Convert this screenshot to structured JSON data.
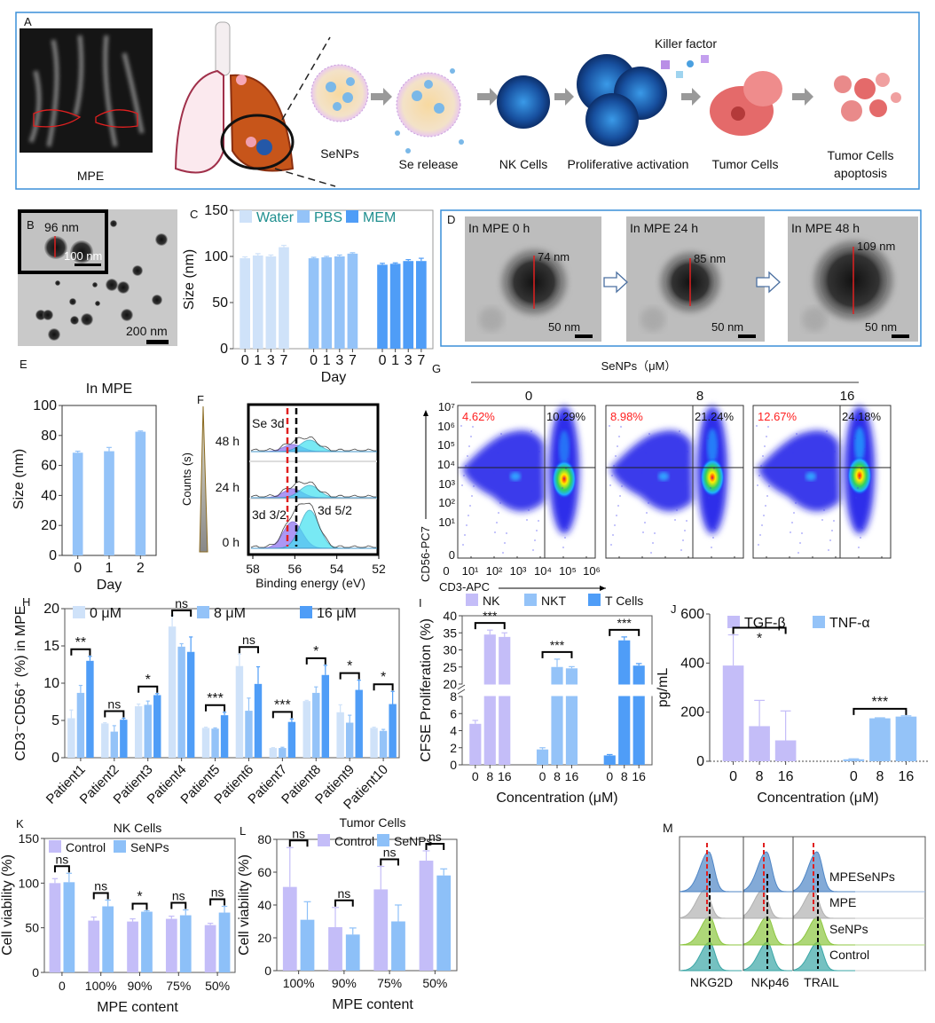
{
  "figure": {
    "panelA": {
      "label": "A",
      "mpe": "MPE",
      "senps": "SeNPs",
      "se_release": "Se release",
      "nk_cells": "NK Cells",
      "proliferative": "Proliferative activation",
      "killer_factor": "Killer factor",
      "tumor_cells": "Tumor Cells",
      "apoptosis_line1": "Tumor Cells",
      "apoptosis_line2": "apoptosis"
    },
    "panelB": {
      "label": "B",
      "inset_size": "96 nm",
      "inset_scale": "100 nm",
      "scale": "200 nm"
    },
    "panelD": {
      "label": "D",
      "frames": [
        {
          "title": "In MPE 0 h",
          "size": "74 nm",
          "scale": "50 nm"
        },
        {
          "title": "In MPE 24 h",
          "size": "85 nm",
          "scale": "50 nm"
        },
        {
          "title": "In MPE 48 h",
          "size": "109 nm",
          "scale": "50 nm"
        }
      ]
    },
    "panelF": {
      "label": "F",
      "ylabel": "Counts (s)",
      "xlabel": "Binding energy (eV)",
      "xticks": [
        "58",
        "56",
        "54",
        "52"
      ],
      "times": [
        "48 h",
        "24 h",
        "0 h"
      ],
      "se3d": "Se 3d",
      "peak_32": "3d 3/2",
      "peak_52": "3d 5/2"
    },
    "panelG": {
      "label": "G",
      "header": "SeNPs（μM）",
      "ylabel": "CD56-PC7",
      "xlabel": "CD3-APC",
      "yticks": [
        "10⁷",
        "10⁶",
        "10⁵",
        "10⁴",
        "10³",
        "10²",
        "10¹",
        "0"
      ],
      "xticks": [
        "0",
        "10¹",
        "10²",
        "10³",
        "10⁴",
        "10⁵",
        "10⁶"
      ],
      "plots": [
        {
          "conc": "0",
          "nk_pct": "4.62%",
          "nkt_pct": "10.29%"
        },
        {
          "conc": "8",
          "nk_pct": "8.98%",
          "nkt_pct": "21.24%"
        },
        {
          "conc": "16",
          "nk_pct": "12.67%",
          "nkt_pct": "24.18%"
        }
      ],
      "nk_color": "#ff2020"
    },
    "panelM": {
      "label": "M",
      "rows": [
        "MPESeNPs",
        "MPE",
        "SeNPs",
        "Control"
      ],
      "markers": [
        "NKG2D",
        "NKp46",
        "TRAIL"
      ],
      "row_colors": [
        "#4f86c6",
        "#b0b0b0",
        "#8cc63f",
        "#3aa6a6"
      ]
    }
  },
  "chart_data": [
    {
      "id": "C",
      "panel": "C",
      "type": "bar",
      "mode": "series_clusters",
      "categories": [
        "0",
        "1",
        "3",
        "7"
      ],
      "xlabel": "Day",
      "ylabel": "Size (nm)",
      "ylim": [
        0,
        150
      ],
      "yticks": [
        0,
        50,
        100,
        150
      ],
      "legend_color": "#1f8f8f",
      "series": [
        {
          "name": "Water",
          "color": "#cfe2f9",
          "values": [
            98,
            101,
            100,
            110
          ],
          "errors": [
            1.5,
            2,
            1.5,
            2
          ]
        },
        {
          "name": "PBS",
          "color": "#94c3f8",
          "values": [
            98,
            99,
            100,
            103
          ],
          "errors": [
            1,
            1,
            1.5,
            1
          ]
        },
        {
          "name": "MEM",
          "color": "#4f9df7",
          "values": [
            91,
            92,
            95,
            95
          ],
          "errors": [
            1.5,
            1,
            1.5,
            3
          ]
        }
      ],
      "significance": []
    },
    {
      "id": "E",
      "panel": "E",
      "type": "bar",
      "mode": "category_clusters",
      "title": "In MPE",
      "categories": [
        "0",
        "1",
        "2"
      ],
      "xlabel": "Day",
      "ylabel": "Size (nm)",
      "ylim": [
        0,
        100
      ],
      "yticks": [
        0,
        20,
        40,
        60,
        80,
        100
      ],
      "series": [
        {
          "color": "#94c3f8",
          "values": [
            68.5,
            69.5,
            82.5
          ],
          "errors": [
            1,
            2.5,
            0.5
          ]
        }
      ],
      "significance": []
    },
    {
      "id": "H",
      "panel": "H",
      "type": "bar",
      "mode": "category_clusters",
      "categories": [
        "Patient1",
        "Patient2",
        "Patient3",
        "Patient4",
        "Patient5",
        "Patient6",
        "Patient7",
        "Patient8",
        "Patient9",
        "Patient10"
      ],
      "xlabel": "",
      "ylabel": "CD3⁻CD56⁺ (%) in MPE",
      "ylim": [
        0,
        20
      ],
      "yticks": [
        0,
        5,
        10,
        15,
        20
      ],
      "series": [
        {
          "name": "0 μM",
          "color": "#cfe2f9",
          "values": [
            5.3,
            4.6,
            6.9,
            17.6,
            4.0,
            12.3,
            1.3,
            7.6,
            6.1,
            4.0
          ],
          "errors": [
            1.1,
            0.1,
            0.3,
            1.5,
            0.1,
            1.6,
            0.05,
            0.1,
            1.0,
            0.1
          ]
        },
        {
          "name": "8 μM",
          "color": "#94c3f8",
          "values": [
            8.7,
            3.5,
            7.1,
            14.9,
            3.9,
            6.3,
            1.3,
            8.7,
            4.7,
            3.6
          ],
          "errors": [
            1.0,
            0.8,
            0.5,
            0.4,
            0.1,
            1.7,
            0.1,
            0.8,
            1.0,
            0.2
          ]
        },
        {
          "name": "16 μM",
          "color": "#4f9df7",
          "values": [
            13.0,
            5.1,
            8.4,
            14.2,
            5.7,
            9.9,
            4.8,
            11.1,
            9.1,
            7.2
          ],
          "errors": [
            0.6,
            0.2,
            0.2,
            2.0,
            0.4,
            2.3,
            0.4,
            1.3,
            1.3,
            1.7
          ]
        }
      ],
      "significance": [
        {
          "cluster": 0,
          "from": 0,
          "to": 2,
          "label": "**"
        },
        {
          "cluster": 1,
          "from": 0,
          "to": 2,
          "label": "ns"
        },
        {
          "cluster": 2,
          "from": 0,
          "to": 2,
          "label": "*"
        },
        {
          "cluster": 3,
          "from": 0,
          "to": 2,
          "label": "ns"
        },
        {
          "cluster": 4,
          "from": 0,
          "to": 2,
          "label": "***"
        },
        {
          "cluster": 5,
          "from": 0,
          "to": 2,
          "label": "ns"
        },
        {
          "cluster": 6,
          "from": 0,
          "to": 2,
          "label": "***"
        },
        {
          "cluster": 7,
          "from": 0,
          "to": 2,
          "label": "*"
        },
        {
          "cluster": 8,
          "from": 0,
          "to": 2,
          "label": "*"
        },
        {
          "cluster": 9,
          "from": 0,
          "to": 2,
          "label": "*"
        }
      ]
    },
    {
      "id": "I",
      "panel": "I",
      "type": "bar",
      "mode": "series_clusters",
      "categories": [
        "0",
        "8",
        "16"
      ],
      "xlabel": "Concentration (μM)",
      "ylabel": "CFSE Proliferation (%)",
      "ylim": [
        0,
        40
      ],
      "axis_break": [
        8,
        20
      ],
      "yticks": [
        0,
        2,
        4,
        6,
        8,
        20,
        25,
        30,
        35,
        40
      ],
      "series": [
        {
          "name": "NK",
          "color": "#c4bdf8",
          "values": [
            4.8,
            34.5,
            33.8
          ],
          "errors": [
            0.4,
            1.3,
            1.2
          ]
        },
        {
          "name": "NKT",
          "color": "#94c3f8",
          "values": [
            1.8,
            25.0,
            24.6
          ],
          "errors": [
            0.2,
            2.3,
            0.5
          ]
        },
        {
          "name": "T Cells",
          "color": "#4f9df7",
          "values": [
            1.1,
            32.8,
            25.4
          ],
          "errors": [
            0.1,
            1.0,
            0.6
          ]
        }
      ],
      "significance": [
        {
          "cluster": 0,
          "from": 0,
          "to": 2,
          "label": "***"
        },
        {
          "cluster": 1,
          "from": 0,
          "to": 2,
          "label": "***"
        },
        {
          "cluster": 2,
          "from": 0,
          "to": 2,
          "label": "***"
        }
      ]
    },
    {
      "id": "J",
      "panel": "J",
      "type": "bar",
      "mode": "series_clusters",
      "categories": [
        "0",
        "8",
        "16"
      ],
      "xlabel": "Concentration (μM)",
      "ylabel": "pg/mL",
      "ylim": [
        0,
        600
      ],
      "yticks": [
        0,
        200,
        400,
        600
      ],
      "series": [
        {
          "name": "TGF-β",
          "color": "#c4bdf8",
          "values": [
            390,
            143,
            85
          ],
          "errors": [
            125,
            105,
            120
          ]
        },
        {
          "name": "TNF-α",
          "color": "#94c3f8",
          "values": [
            8,
            175,
            182
          ],
          "errors": [
            2,
            2,
            3
          ]
        }
      ],
      "significance": [
        {
          "cluster": 0,
          "from": 0,
          "to": 2,
          "label": "*"
        },
        {
          "cluster": 1,
          "from": 0,
          "to": 2,
          "label": "***"
        }
      ]
    },
    {
      "id": "K",
      "panel": "K",
      "type": "bar",
      "mode": "category_clusters",
      "title": "NK Cells",
      "categories": [
        "0",
        "100%",
        "90%",
        "75%",
        "50%"
      ],
      "xlabel": "MPE content",
      "ylabel": "Cell viability (%)",
      "ylim": [
        0,
        150
      ],
      "yticks": [
        0,
        50,
        100,
        150
      ],
      "series": [
        {
          "name": "Control",
          "color": "#c4bdf8",
          "values": [
            100,
            58,
            57,
            60,
            53
          ],
          "errors": [
            5,
            4,
            3,
            3,
            2
          ]
        },
        {
          "name": "SeNPs",
          "color": "#8dc0f8",
          "values": [
            101,
            74,
            68,
            64,
            67
          ],
          "errors": [
            10,
            7,
            1,
            6,
            7
          ]
        }
      ],
      "significance": [
        {
          "cluster": 0,
          "from": 0,
          "to": 1,
          "label": "ns"
        },
        {
          "cluster": 1,
          "from": 0,
          "to": 1,
          "label": "ns"
        },
        {
          "cluster": 2,
          "from": 0,
          "to": 1,
          "label": "*"
        },
        {
          "cluster": 3,
          "from": 0,
          "to": 1,
          "label": "ns"
        },
        {
          "cluster": 4,
          "from": 0,
          "to": 1,
          "label": "ns"
        }
      ]
    },
    {
      "id": "L",
      "panel": "L",
      "type": "bar",
      "mode": "category_clusters",
      "title": "Tumor Cells",
      "categories": [
        "100%",
        "90%",
        "75%",
        "50%"
      ],
      "xlabel": "MPE content",
      "ylabel": "Cell viability (%)",
      "ylim": [
        0,
        80
      ],
      "yticks": [
        0,
        20,
        40,
        60,
        80
      ],
      "series": [
        {
          "name": "Control",
          "color": "#c4bdf8",
          "values": [
            51,
            26.5,
            49.5,
            67
          ],
          "errors": [
            24,
            12,
            14,
            6
          ]
        },
        {
          "name": "SeNPs",
          "color": "#8dc0f8",
          "values": [
            31,
            22,
            30,
            58
          ],
          "errors": [
            11,
            4,
            10,
            4
          ]
        }
      ],
      "significance": [
        {
          "cluster": 0,
          "from": 0,
          "to": 1,
          "label": "ns"
        },
        {
          "cluster": 1,
          "from": 0,
          "to": 1,
          "label": "ns"
        },
        {
          "cluster": 2,
          "from": 0,
          "to": 1,
          "label": "ns"
        },
        {
          "cluster": 3,
          "from": 0,
          "to": 1,
          "label": "ns"
        }
      ]
    }
  ]
}
